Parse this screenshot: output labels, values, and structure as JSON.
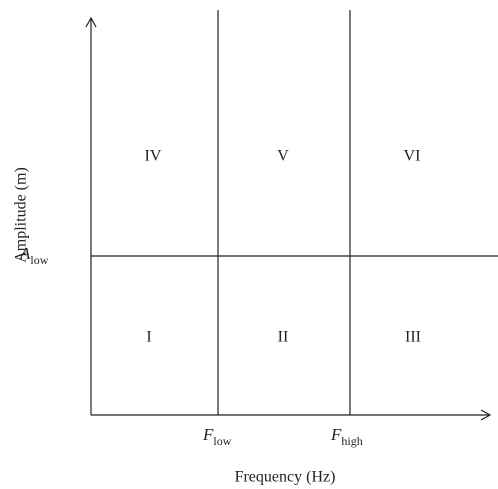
{
  "diagram": {
    "x_axis_label": "Frequency (Hz)",
    "y_axis_label": "Amplitude (m)",
    "thresholds": [
      {
        "symbol": "A",
        "subscript": "low"
      },
      {
        "symbol": "F",
        "subscript": "low"
      },
      {
        "symbol": "F",
        "subscript": "high"
      }
    ],
    "regions": [
      "I",
      "II",
      "III",
      "IV",
      "V",
      "VI"
    ]
  }
}
